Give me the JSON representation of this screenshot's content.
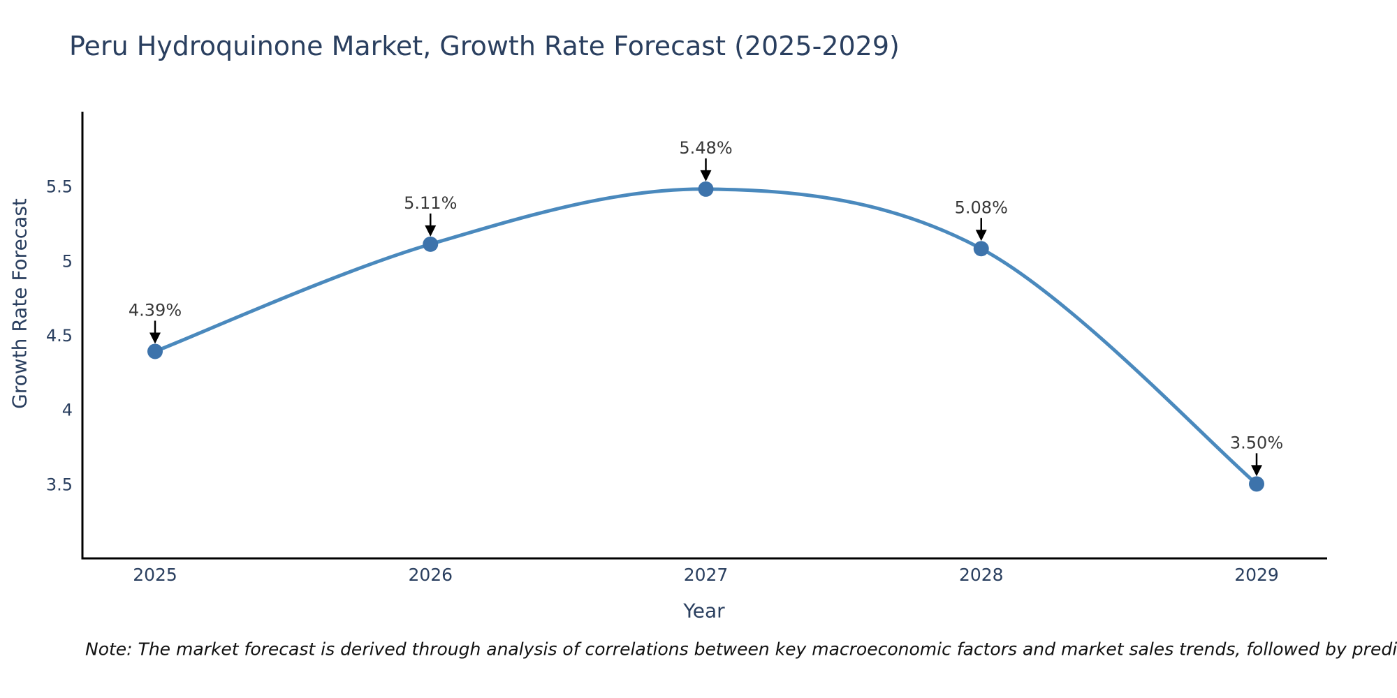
{
  "chart_data": {
    "type": "line",
    "title": "Peru Hydroquinone Market, Growth Rate Forecast (2025-2029)",
    "xlabel": "Year",
    "ylabel": "Growth Rate Forecast",
    "x": [
      2025,
      2026,
      2027,
      2028,
      2029
    ],
    "y": [
      4.39,
      5.11,
      5.48,
      5.08,
      3.5
    ],
    "point_labels": [
      "4.39%",
      "5.11%",
      "5.48%",
      "5.08%",
      "3.50%"
    ],
    "x_tick_labels": [
      "2025",
      "2026",
      "2027",
      "2028",
      "2029"
    ],
    "y_ticks": [
      3.5,
      4,
      4.5,
      5,
      5.5
    ],
    "y_tick_labels": [
      "3.5",
      "4",
      "4.5",
      "5",
      "5.5"
    ],
    "ylim": [
      3.0,
      6.0
    ],
    "xlim": [
      2024.74,
      2029.26
    ],
    "line_shape": "spline",
    "grid": false,
    "legend": false,
    "colors": {
      "line": "#4a89bd",
      "marker": "#3d73ab",
      "axis_line": "#000000",
      "axis_text": "#2a3f5f",
      "annotation_text": "#383838",
      "annotation_arrow": "#000000",
      "title": "#2a3f5f",
      "note": "#111111",
      "background": "#ffffff"
    }
  },
  "note": "Note: The market forecast is derived through analysis of correlations between key macroeconomic factors and market sales trends, followed by predictive modeling to project future sales"
}
